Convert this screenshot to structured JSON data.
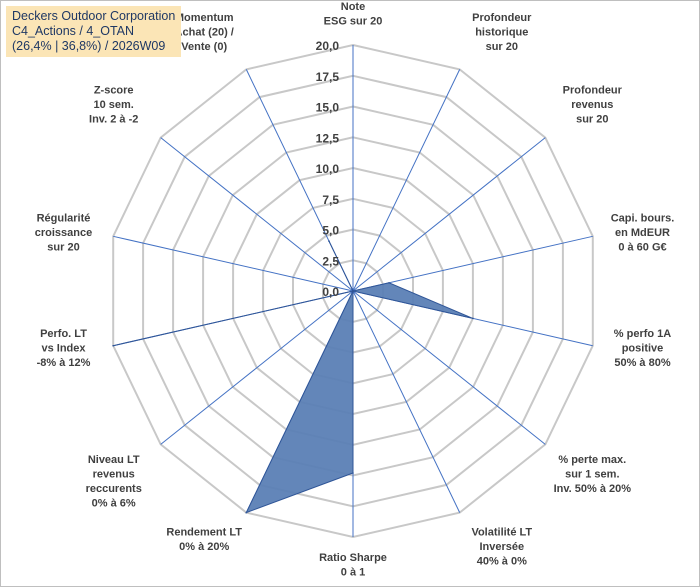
{
  "chart_data": {
    "type": "radar",
    "title": "Deckers Outdoor Corporation\nC4_Actions / 4_OTAN\n(26,4% | 36,8%) / 2026W09",
    "rlim": [
      0,
      20
    ],
    "ticks": [
      "0,0",
      "2,5",
      "5,0",
      "7,5",
      "10,0",
      "12,5",
      "15,0",
      "17,5",
      "20,0"
    ],
    "axes": [
      {
        "label": [
          "Note",
          "ESG sur 20"
        ],
        "value": 0
      },
      {
        "label": [
          "Profondeur",
          "historique",
          "sur 20"
        ],
        "value": 0
      },
      {
        "label": [
          "Profondeur",
          "revenus",
          "sur 20"
        ],
        "value": 0
      },
      {
        "label": [
          "Capi. bours.",
          "en MdEUR",
          "0 à 60 G€"
        ],
        "value": 3.0
      },
      {
        "label": [
          "% perfo 1A",
          "positive",
          "50% à 80%"
        ],
        "value": 10.0
      },
      {
        "label": [
          "% perte max.",
          "sur 1 sem.",
          "Inv. 50% à 20%"
        ],
        "value": 0
      },
      {
        "label": [
          "Volatilité LT",
          "Inversée",
          "40% à 0%"
        ],
        "value": 0
      },
      {
        "label": [
          "Ratio Sharpe",
          "0 à 1"
        ],
        "value": 14.8
      },
      {
        "label": [
          "Rendement LT",
          "0% à 20%"
        ],
        "value": 20.0
      },
      {
        "label": [
          "Niveau LT",
          "revenus",
          "reccurents",
          "0% à 6%"
        ],
        "value": 0
      },
      {
        "label": [
          "Perfo. LT",
          "vs Index",
          "-8% à 12%"
        ],
        "value": 20.0
      },
      {
        "label": [
          "Régularité",
          "croissance",
          "sur 20"
        ],
        "value": 0
      },
      {
        "label": [
          "Z-score",
          "10 sem.",
          "Inv. 2 à -2"
        ],
        "value": 0
      },
      {
        "label": [
          "Momentum",
          "Achat (20) /",
          "Vente (0)"
        ],
        "value": 4.5
      }
    ],
    "colors": {
      "fill": "#5b7fb5",
      "stroke": "#2f5597",
      "grid": "#c8c8c8",
      "axis": "#4472c4"
    }
  }
}
